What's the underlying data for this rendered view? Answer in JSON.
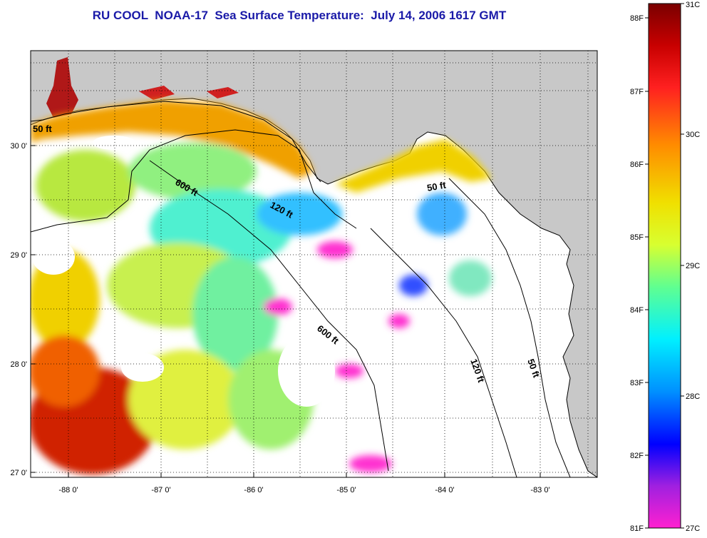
{
  "title": "RU COOL  NOAA-17  Sea Surface Temperature:  July 14, 2006 1617 GMT",
  "axes": {
    "lon_ticks": [
      "-88 0'",
      "-87 0'",
      "-86 0'",
      "-85 0'",
      "-84 0'",
      "-83 0'"
    ],
    "lat_ticks": [
      "30 0'",
      "29 0'",
      "28 0'",
      "27 0'"
    ]
  },
  "contour_labels": {
    "nw_50": "50 ft",
    "ne_50": "50 ft",
    "east_50": "50 ft",
    "nw_600": "600 ft",
    "center_600": "600 ft",
    "center_120": "120 ft",
    "east_120": "120 ft"
  },
  "colorbar": {
    "fahrenheit_labels": [
      "88F",
      "87F",
      "86F",
      "85F",
      "84F",
      "83F",
      "82F",
      "81F"
    ],
    "celsius_labels": [
      "31C",
      "30C",
      "29C",
      "28C",
      "27C"
    ],
    "colors": [
      "#800000",
      "#ff0000",
      "#ff8000",
      "#ffff00",
      "#80ff80",
      "#00ffff",
      "#0080ff",
      "#0000ff",
      "#8020d0",
      "#ff20d0"
    ]
  },
  "colors": {
    "land": "#c8c8c8",
    "water_no_data": "#ffffff",
    "title": "#1a1aa8"
  }
}
